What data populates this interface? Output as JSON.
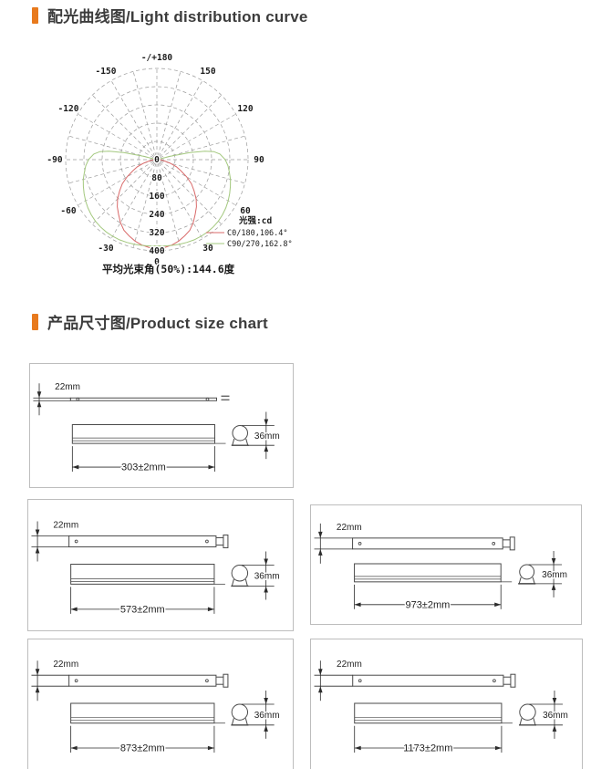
{
  "sections": {
    "light_curve": {
      "title": "配光曲线图/Light distribution curve"
    },
    "size_chart": {
      "title": "产品尺寸图/Product size chart"
    }
  },
  "chart_data": {
    "type": "polar-light-distribution",
    "unit_label": "光强:cd",
    "footer": "平均光束角(50%):144.6度",
    "beam_angles": {
      "C0_180_deg": 106.4,
      "C90_270_deg": 162.8,
      "average_50pct_deg": 144.6
    },
    "radial_ticks": [
      0,
      80,
      160,
      240,
      320,
      400
    ],
    "rings": [
      80,
      160,
      240,
      320,
      400
    ],
    "angle_ticks": [
      {
        "deg": 180,
        "label": "-/+180"
      },
      {
        "deg": -150,
        "label": "-150"
      },
      {
        "deg": 150,
        "label": "150"
      },
      {
        "deg": -120,
        "label": "-120"
      },
      {
        "deg": 120,
        "label": "120"
      },
      {
        "deg": -90,
        "label": "-90"
      },
      {
        "deg": 90,
        "label": "90"
      },
      {
        "deg": -60,
        "label": "-60"
      },
      {
        "deg": 60,
        "label": "60"
      },
      {
        "deg": -30,
        "label": "-30"
      },
      {
        "deg": 30,
        "label": "30"
      },
      {
        "deg": 0,
        "label": "0"
      }
    ],
    "grid_color": "#9a9a9a",
    "series": [
      {
        "name": "C0/180,106.4°",
        "color": "#d96a6a",
        "points": [
          [
            -90,
            0
          ],
          [
            -85,
            16
          ],
          [
            -80,
            36
          ],
          [
            -75,
            61
          ],
          [
            -70,
            91
          ],
          [
            -65,
            117
          ],
          [
            -60,
            151
          ],
          [
            -55,
            185
          ],
          [
            -50,
            213
          ],
          [
            -45,
            244
          ],
          [
            -40,
            270
          ],
          [
            -35,
            293
          ],
          [
            -30,
            319
          ],
          [
            -25,
            342
          ],
          [
            -20,
            356
          ],
          [
            -15,
            370
          ],
          [
            -10,
            380
          ],
          [
            -5,
            387
          ],
          [
            0,
            391
          ],
          [
            5,
            387
          ],
          [
            10,
            380
          ],
          [
            15,
            370
          ],
          [
            20,
            356
          ],
          [
            25,
            342
          ],
          [
            30,
            319
          ],
          [
            35,
            293
          ],
          [
            40,
            270
          ],
          [
            45,
            244
          ],
          [
            50,
            213
          ],
          [
            55,
            185
          ],
          [
            60,
            151
          ],
          [
            65,
            117
          ],
          [
            70,
            91
          ],
          [
            75,
            61
          ],
          [
            80,
            36
          ],
          [
            85,
            16
          ],
          [
            90,
            0
          ]
        ]
      },
      {
        "name": "C90/270,162.8°",
        "color": "#a3c87e",
        "points": [
          [
            -106,
            0
          ],
          [
            -104,
            62
          ],
          [
            -102,
            148
          ],
          [
            -100,
            214
          ],
          [
            -98,
            252
          ],
          [
            -95,
            278
          ],
          [
            -90,
            300
          ],
          [
            -85,
            313
          ],
          [
            -80,
            323
          ],
          [
            -75,
            334
          ],
          [
            -70,
            343
          ],
          [
            -65,
            352
          ],
          [
            -60,
            361
          ],
          [
            -55,
            369
          ],
          [
            -50,
            376
          ],
          [
            -45,
            381
          ],
          [
            -40,
            385
          ],
          [
            -35,
            387
          ],
          [
            -30,
            388
          ],
          [
            -25,
            388
          ],
          [
            -20,
            386
          ],
          [
            -15,
            384
          ],
          [
            -10,
            382
          ],
          [
            -5,
            380
          ],
          [
            0,
            378
          ],
          [
            5,
            380
          ],
          [
            10,
            382
          ],
          [
            15,
            384
          ],
          [
            20,
            386
          ],
          [
            25,
            388
          ],
          [
            30,
            388
          ],
          [
            35,
            387
          ],
          [
            40,
            385
          ],
          [
            45,
            381
          ],
          [
            50,
            376
          ],
          [
            55,
            369
          ],
          [
            60,
            361
          ],
          [
            65,
            352
          ],
          [
            70,
            343
          ],
          [
            75,
            334
          ],
          [
            80,
            323
          ],
          [
            85,
            313
          ],
          [
            90,
            300
          ],
          [
            95,
            278
          ],
          [
            98,
            252
          ],
          [
            100,
            214
          ],
          [
            102,
            148
          ],
          [
            104,
            62
          ],
          [
            106,
            0
          ]
        ]
      }
    ]
  },
  "size_boxes": [
    {
      "id": "303",
      "length_label": "303±2mm",
      "width_label": "22mm",
      "height_label": "36mm",
      "variant": "thin"
    },
    {
      "id": "573",
      "length_label": "573±2mm",
      "width_label": "22mm",
      "height_label": "36mm",
      "variant": "bar"
    },
    {
      "id": "973",
      "length_label": "973±2mm",
      "width_label": "22mm",
      "height_label": "36mm",
      "variant": "bar"
    },
    {
      "id": "873",
      "length_label": "873±2mm",
      "width_label": "22mm",
      "height_label": "36mm",
      "variant": "bar"
    },
    {
      "id": "1173",
      "length_label": "1173±2mm",
      "width_label": "22mm",
      "height_label": "36mm",
      "variant": "bar"
    }
  ],
  "colors": {
    "accent": "#e87a1d",
    "drawing_line": "#4a4a4a",
    "dim_line": "#2b2b2b",
    "box_border": "#bdbdbd",
    "curve_c0_180": "#d96a6a",
    "curve_c90_270": "#a3c87e"
  }
}
